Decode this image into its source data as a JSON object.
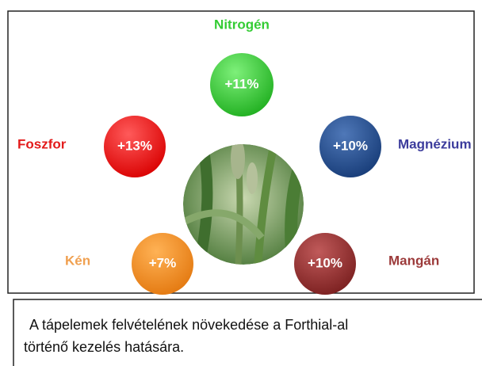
{
  "nodes": [
    {
      "label": "Nitrogén",
      "value": "+11%"
    },
    {
      "label": "Foszfor",
      "value": "+13%"
    },
    {
      "label": "Magnézium",
      "value": "+10%"
    },
    {
      "label": "Kén",
      "value": "+7%"
    },
    {
      "label": "Mangán",
      "value": "+10%"
    }
  ],
  "caption": [
    "A tápelemek felvételének növekedése a Forthial-al",
    "történő kezelés hatására."
  ]
}
